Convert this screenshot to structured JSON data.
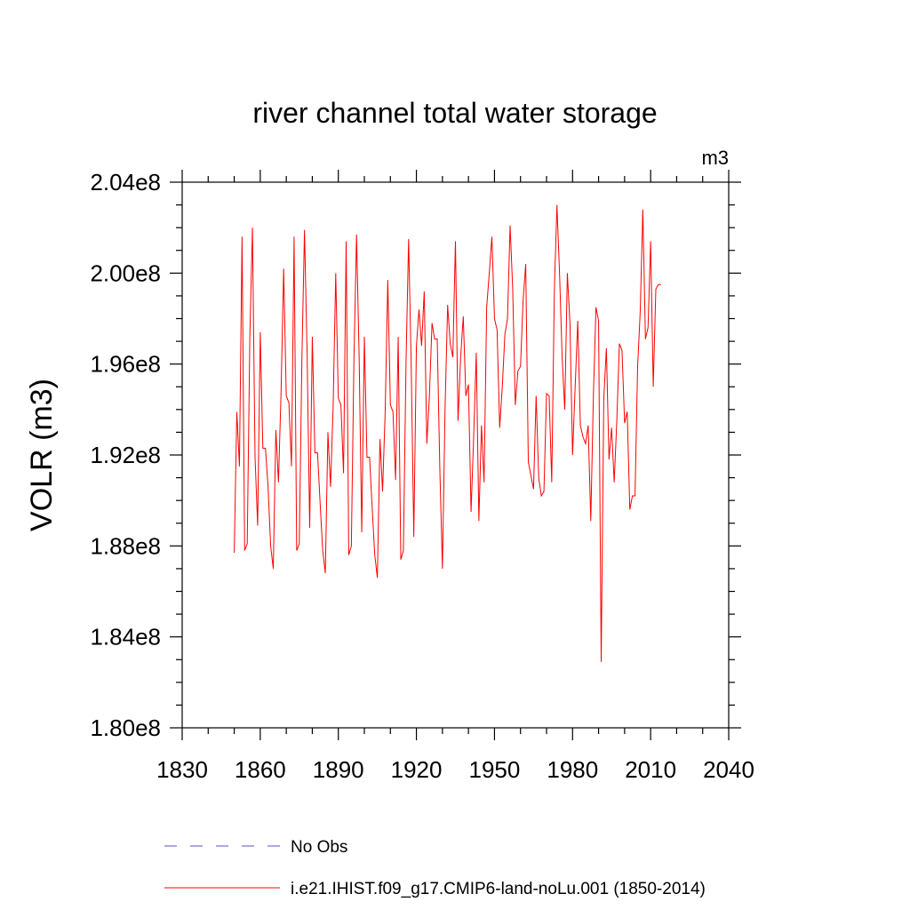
{
  "chart_data": {
    "type": "line",
    "title": "river channel total water storage",
    "units_label": "m3",
    "ylabel": "VOLR  (m3)",
    "xlabel": "",
    "xlim": [
      1830,
      2040
    ],
    "ylim": [
      180000000,
      204000000
    ],
    "x_ticks": [
      1830,
      1860,
      1890,
      1920,
      1950,
      1980,
      2010,
      2040
    ],
    "y_ticks": [
      180000000,
      184000000,
      188000000,
      192000000,
      196000000,
      200000000,
      204000000
    ],
    "y_tick_labels": [
      "1.80e8",
      "1.84e8",
      "1.88e8",
      "1.92e8",
      "1.96e8",
      "2.00e8",
      "2.04e8"
    ],
    "grid": false,
    "legend_placement": "bottom",
    "legend": [
      {
        "name": "No Obs",
        "color": "#7777cc",
        "style": "dashed"
      },
      {
        "name": "i.e21.IHIST.f09_g17.CMIP6-land-noLu.001 (1850-2014)",
        "color": "#ff0000",
        "style": "solid"
      }
    ],
    "series": [
      {
        "name": "i.e21.IHIST.f09_g17.CMIP6-land-noLu.001 (1850-2014)",
        "color": "#ff0000",
        "x_start": 1850,
        "x_step": 1,
        "values": [
          187.7,
          193.9,
          191.5,
          201.6,
          187.8,
          188.1,
          197.2,
          202.0,
          191.9,
          188.9,
          197.4,
          192.3,
          192.3,
          190.6,
          188.0,
          187.0,
          193.1,
          190.8,
          194.8,
          200.2,
          194.6,
          194.3,
          191.5,
          201.6,
          187.8,
          188.1,
          196.2,
          201.9,
          196.5,
          188.8,
          197.2,
          192.1,
          192.1,
          189.9,
          187.8,
          186.8,
          193.0,
          190.6,
          194.1,
          200.0,
          194.5,
          194.2,
          191.2,
          201.4,
          187.6,
          188.0,
          196.2,
          201.7,
          196.3,
          188.6,
          197.2,
          191.9,
          191.9,
          189.7,
          187.6,
          186.6,
          192.7,
          190.4,
          193.9,
          199.7,
          194.2,
          193.9,
          190.9,
          197.2,
          187.4,
          187.8,
          196.0,
          201.5,
          196.0,
          188.4,
          196.8,
          198.4,
          196.8,
          199.2,
          192.5,
          194.6,
          197.8,
          197.1,
          197.1,
          191.4,
          187.0,
          194.0,
          198.6,
          196.9,
          196.3,
          201.4,
          193.5,
          196.3,
          198.1,
          194.6,
          195.1,
          189.5,
          192.8,
          196.5,
          189.1,
          193.3,
          190.8,
          198.5,
          200.0,
          201.6,
          198.0,
          197.5,
          193.2,
          195.0,
          197.3,
          198.0,
          202.1,
          199.3,
          194.2,
          195.7,
          195.9,
          198.8,
          200.4,
          191.7,
          191.1,
          190.5,
          194.6,
          191.0,
          190.2,
          190.4,
          194.7,
          194.6,
          190.8,
          199.2,
          203.0,
          200.0,
          196.3,
          194.0,
          200.0,
          197.8,
          192.0,
          195.0,
          197.9,
          193.3,
          192.8,
          192.5,
          193.3,
          189.1,
          194.6,
          198.5,
          197.9,
          182.9,
          194.5,
          196.7,
          191.8,
          193.2,
          190.8,
          193.5,
          196.9,
          196.6,
          193.4,
          193.9,
          189.6,
          190.2,
          190.2,
          195.9,
          198.3,
          202.8,
          197.1,
          197.6,
          201.4,
          195.0,
          199.3,
          199.5,
          199.5
        ]
      }
    ]
  }
}
